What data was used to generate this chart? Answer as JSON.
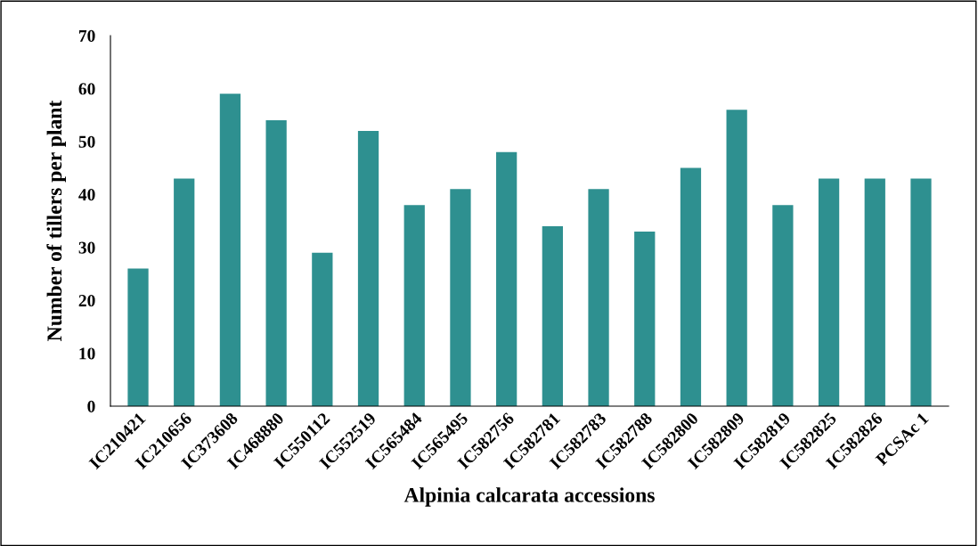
{
  "chart_data": {
    "type": "bar",
    "xlabel": "Alpinia calcarata accessions",
    "ylabel": "Number of tillers per plant",
    "categories": [
      "IC210421",
      "IC210656",
      "IC373608",
      "IC468880",
      "IC550112",
      "IC552519",
      "IC565484",
      "IC565495",
      "IC582756",
      "IC582781",
      "IC582783",
      "IC582788",
      "IC582800",
      "IC582809",
      "IC582819",
      "IC582825",
      "IC582826",
      "PCSAc 1"
    ],
    "values": [
      26,
      43,
      59,
      54,
      29,
      52,
      38,
      41,
      48,
      34,
      41,
      33,
      45,
      56,
      38,
      43,
      43,
      43
    ],
    "color": "#2e9090",
    "ylim": [
      0,
      70
    ],
    "yticks": [
      0,
      10,
      20,
      30,
      40,
      50,
      60,
      70
    ],
    "grid": false,
    "legend": false
  }
}
